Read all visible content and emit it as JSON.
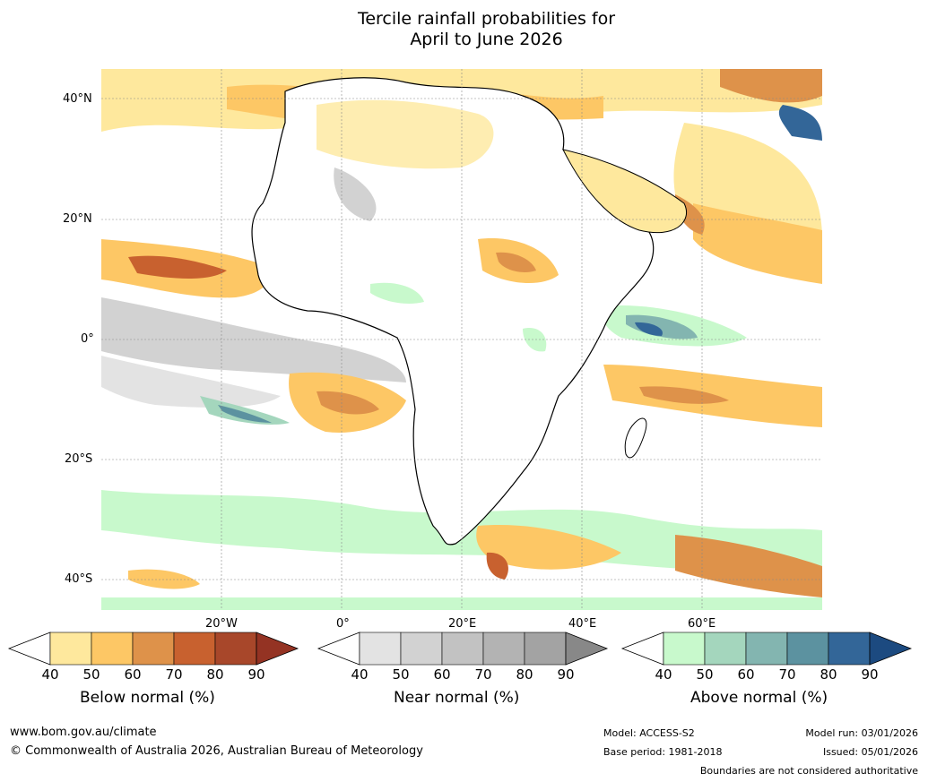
{
  "title": {
    "line1": "Tercile rainfall probabilities for",
    "line2": "April to June 2026"
  },
  "map": {
    "lat_labels": [
      "40°N",
      "20°N",
      "0°",
      "20°S",
      "40°S"
    ],
    "lon_labels": [
      "20°W",
      "0°",
      "20°E",
      "40°E",
      "60°E"
    ]
  },
  "colorbars": [
    {
      "name": "below",
      "title": "Below normal (%)",
      "ticks": [
        "40",
        "50",
        "60",
        "70",
        "80",
        "90"
      ],
      "colors": [
        "#fee89d",
        "#fdc765",
        "#de924a",
        "#c8612f",
        "#a8472a"
      ],
      "over": "#943323"
    },
    {
      "name": "near",
      "title": "Near normal (%)",
      "ticks": [
        "40",
        "50",
        "60",
        "70",
        "80",
        "90"
      ],
      "colors": [
        "#e3e3e3",
        "#d2d2d2",
        "#c2c2c2",
        "#b3b3b3",
        "#a3a3a3"
      ],
      "over": "#888888"
    },
    {
      "name": "above",
      "title": "Above normal (%)",
      "ticks": [
        "40",
        "50",
        "60",
        "70",
        "80",
        "90"
      ],
      "colors": [
        "#c8f9cc",
        "#a4d6bd",
        "#83b5b0",
        "#5c92a0",
        "#336698"
      ],
      "over": "#1c4a80"
    }
  ],
  "footer": {
    "website": "www.bom.gov.au/climate",
    "copyright": "© Commonwealth of Australia 2026, Australian Bureau of Meteorology",
    "model": "Model: ACCESS-S2",
    "base_period": "Base period: 1981-2018",
    "model_run": "Model run: 03/01/2026",
    "issued": "Issued: 05/01/2026",
    "disclaimer": "Boundaries are not considered authoritative"
  }
}
